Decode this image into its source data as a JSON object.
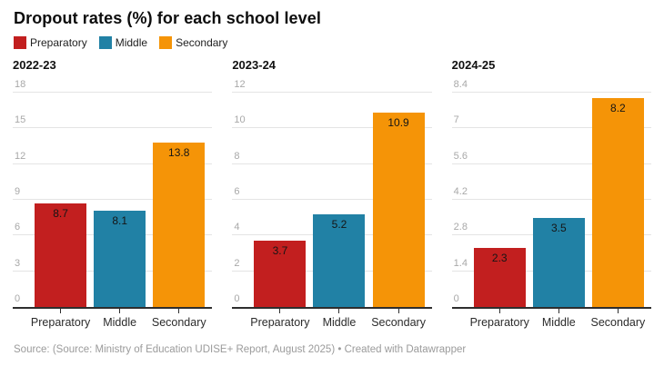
{
  "title": "Dropout rates (%) for each school level",
  "legend": {
    "items": [
      {
        "label": "Preparatory",
        "color": "#c21f1f"
      },
      {
        "label": "Middle",
        "color": "#2181a5"
      },
      {
        "label": "Secondary",
        "color": "#f59407"
      }
    ]
  },
  "palette": {
    "gridline": "#e4e4e4",
    "axis_line": "#2e2e2e",
    "y_tick_text": "#a8a8a8",
    "x_label_text": "#2b2b2b",
    "bar_value_text": "#151515"
  },
  "chart_data": [
    {
      "type": "bar",
      "title": "2022-23",
      "categories": [
        "Preparatory",
        "Middle",
        "Secondary"
      ],
      "values": [
        8.7,
        8.1,
        13.8
      ],
      "ylim": [
        0,
        18
      ],
      "yticks": [
        0,
        3,
        6,
        9,
        12,
        15,
        18
      ],
      "grid": true,
      "legend_position": "top"
    },
    {
      "type": "bar",
      "title": "2023-24",
      "categories": [
        "Preparatory",
        "Middle",
        "Secondary"
      ],
      "values": [
        3.7,
        5.2,
        10.9
      ],
      "ylim": [
        0,
        12
      ],
      "yticks": [
        0,
        2,
        4,
        6,
        8,
        10,
        12
      ],
      "grid": true,
      "legend_position": "top"
    },
    {
      "type": "bar",
      "title": "2024-25",
      "categories": [
        "Preparatory",
        "Middle",
        "Secondary"
      ],
      "values": [
        2.3,
        3.5,
        8.2
      ],
      "ylim": [
        0,
        8.4
      ],
      "yticks": [
        0,
        1.4,
        2.8,
        4.2,
        5.6,
        7,
        8.4
      ],
      "grid": true,
      "legend_position": "top"
    }
  ],
  "footer": {
    "source": "Source: (Source: Ministry of Education UDISE+ Report, August 2025)",
    "separator": " • ",
    "attribution": "Created with Datawrapper"
  }
}
